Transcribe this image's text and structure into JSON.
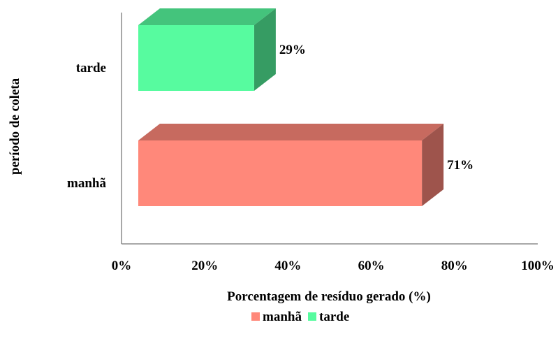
{
  "chart_data": {
    "type": "bar",
    "orientation": "horizontal",
    "style": "3d",
    "categories": [
      "manhã",
      "tarde"
    ],
    "series": [
      {
        "name": "manhã",
        "values": [
          71,
          null
        ],
        "color": "#ff887a"
      },
      {
        "name": "tarde",
        "values": [
          null,
          29
        ],
        "color": "#57fb9f"
      }
    ],
    "data_labels": [
      "71%",
      "29%"
    ],
    "xlabel": "Porcentagem de resíduo gerado (%)",
    "ylabel": "período de coleta",
    "xlim": [
      0,
      100
    ],
    "x_ticks": [
      "0%",
      "20%",
      "40%",
      "60%",
      "80%",
      "100%"
    ],
    "grid": false,
    "legend_position": "bottom"
  }
}
